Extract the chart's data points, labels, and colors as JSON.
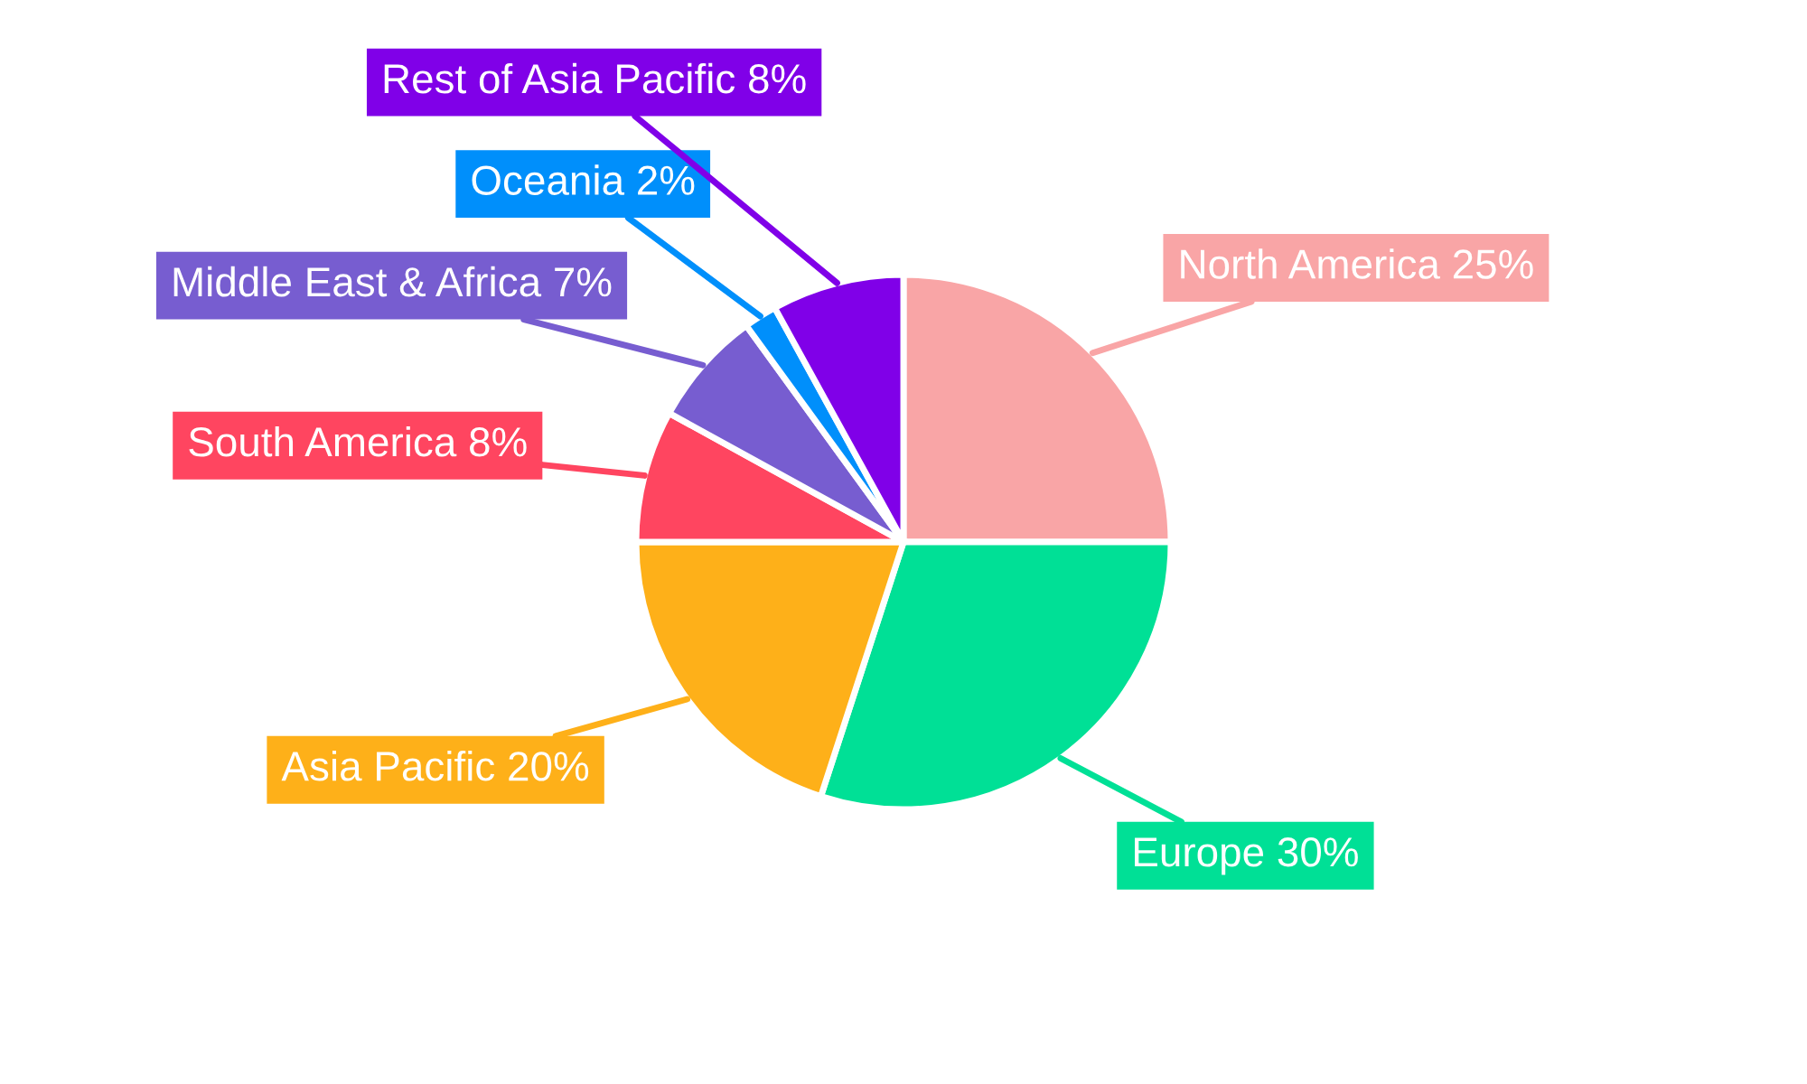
{
  "chart_data": {
    "type": "pie",
    "categories": [
      "North America",
      "Europe",
      "Asia Pacific",
      "South America",
      "Middle East & Africa",
      "Oceania",
      "Rest of Asia Pacific"
    ],
    "values": [
      25,
      30,
      20,
      8,
      7,
      2,
      8
    ],
    "colors": [
      "#f9a5a6",
      "#00e096",
      "#feb019",
      "#ff4560",
      "#775dd0",
      "#008ffb",
      "#8000e8"
    ],
    "value_labels": [
      "25%",
      "30%",
      "20%",
      "8%",
      "7%",
      "2%",
      "8%"
    ],
    "legend": false
  }
}
